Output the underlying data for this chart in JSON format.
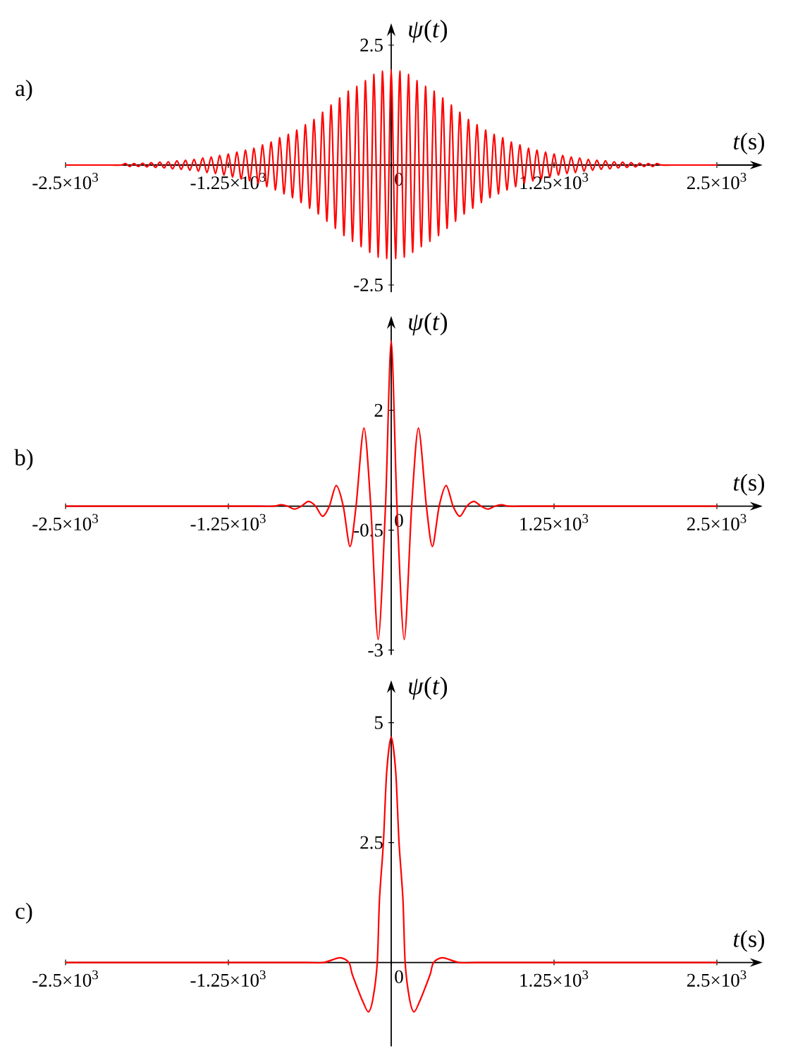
{
  "chart_data": [
    {
      "type": "line",
      "title": "a)",
      "xlabel": "*t*(s)",
      "ylabel": "*ψ*(*t*)",
      "color": "#ff0000",
      "xlim": [
        -2500,
        2790
      ],
      "ylim": [
        -2.65,
        2.79
      ],
      "xticks": [
        {
          "value": -2500,
          "label": "-2.5×10$^{3}$"
        },
        {
          "value": -1250,
          "label": "-1.25×10$^{3}$"
        },
        0,
        {
          "value": 1250,
          "label": "1.25×10$^{3}$"
        },
        {
          "value": 2500,
          "label": "2.5×10$^{3}$"
        }
      ],
      "yticks": [
        -2.5,
        2.5
      ],
      "x": [
        -2500,
        -2300,
        -2150,
        -2072,
        -2039,
        -2007,
        -1974,
        -1941,
        -1908,
        -1875,
        -1842,
        -1809,
        -1776,
        -1743,
        -1711,
        -1678,
        -1645,
        -1612,
        -1579,
        -1546,
        -1513,
        -1480,
        -1447,
        -1414,
        -1382,
        -1349,
        -1316,
        -1283,
        -1250,
        -1217,
        -1184,
        -1151,
        -1118,
        -1086,
        -1053,
        -1020,
        -987,
        -954,
        -921,
        -888,
        -855,
        -822,
        -789,
        -757,
        -724,
        -691,
        -658,
        -625,
        -592,
        -559,
        -526,
        -493,
        -461,
        -428,
        -395,
        -362,
        -329,
        -296,
        -263,
        -230,
        -197,
        -164,
        -132,
        -99,
        -66,
        -33,
        0,
        33,
        66,
        99,
        132,
        164,
        197,
        230,
        263,
        296,
        329,
        362,
        395,
        428,
        461,
        493,
        526,
        559,
        592,
        625,
        658,
        691,
        724,
        757,
        789,
        822,
        855,
        888,
        921,
        954,
        987,
        1020,
        1053,
        1086,
        1118,
        1151,
        1184,
        1217,
        1250,
        1283,
        1316,
        1349,
        1382,
        1414,
        1447,
        1480,
        1513,
        1546,
        1579,
        1612,
        1645,
        1678,
        1711,
        1743,
        1776,
        1809,
        1842,
        1875,
        1908,
        1941,
        1974,
        2007,
        2039,
        2072,
        2150,
        2300,
        2500
      ],
      "values": [
        0,
        0,
        0,
        0,
        0.03,
        -0.03,
        0.03,
        -0.03,
        0.04,
        -0.04,
        0.05,
        -0.05,
        0.06,
        -0.06,
        0.07,
        -0.08,
        0.09,
        -0.09,
        0.1,
        -0.11,
        0.12,
        -0.13,
        0.15,
        -0.16,
        0.17,
        -0.18,
        0.2,
        -0.21,
        0.23,
        -0.25,
        0.27,
        -0.29,
        0.31,
        -0.33,
        0.35,
        -0.38,
        0.42,
        -0.45,
        0.48,
        -0.52,
        0.57,
        -0.6,
        0.64,
        -0.68,
        0.73,
        -0.78,
        0.84,
        -0.9,
        0.95,
        -1.02,
        1.1,
        -1.17,
        1.25,
        -1.32,
        1.4,
        -1.47,
        1.54,
        -1.59,
        1.64,
        -1.7,
        1.76,
        -1.82,
        1.89,
        -1.92,
        1.96,
        -1.95,
        2.0,
        -1.95,
        1.96,
        -1.92,
        1.89,
        -1.82,
        1.76,
        -1.7,
        1.64,
        -1.59,
        1.54,
        -1.47,
        1.4,
        -1.32,
        1.25,
        -1.17,
        1.1,
        -1.02,
        0.95,
        -0.9,
        0.84,
        -0.78,
        0.73,
        -0.68,
        0.64,
        -0.6,
        0.57,
        -0.52,
        0.48,
        -0.45,
        0.42,
        -0.38,
        0.35,
        -0.33,
        0.31,
        -0.29,
        0.27,
        -0.25,
        0.23,
        -0.21,
        0.2,
        -0.18,
        0.17,
        -0.16,
        0.15,
        -0.13,
        0.12,
        -0.11,
        0.1,
        -0.09,
        0.09,
        -0.08,
        0.07,
        -0.06,
        0.06,
        -0.05,
        0.05,
        -0.04,
        0.04,
        -0.03,
        0.03,
        -0.03,
        0.03,
        0,
        0,
        0,
        0
      ]
    },
    {
      "type": "line",
      "title": "b)",
      "xlabel": "*t*(s)",
      "ylabel": "*ψ*(*t*)",
      "color": "#ff0000",
      "xlim": [
        -2500,
        2790
      ],
      "ylim": [
        -3.1,
        3.8
      ],
      "xticks": [
        {
          "value": -2500,
          "label": "-2.5×10$^{3}$"
        },
        {
          "value": -1250,
          "label": "-1.25×10$^{3}$"
        },
        0,
        {
          "value": 1250,
          "label": "1.25×10$^{3}$"
        },
        {
          "value": 2500,
          "label": "2.5×10$^{3}$"
        }
      ],
      "yticks": [
        -3,
        -0.5,
        2
      ],
      "x": [
        -2500,
        -1600,
        -1200,
        -1000,
        -900,
        -848,
        -795,
        -742,
        -690,
        -635,
        -580,
        -527,
        -475,
        -422,
        -368,
        -316,
        -270,
        -209,
        -157,
        -100,
        -44,
        0,
        44,
        100,
        157,
        209,
        270,
        316,
        368,
        422,
        475,
        527,
        580,
        635,
        690,
        742,
        795,
        848,
        900,
        1000,
        1200,
        1600,
        2500
      ],
      "values": [
        0,
        0,
        0,
        0,
        0,
        0.03,
        0,
        -0.06,
        0,
        0.1,
        0,
        -0.21,
        0,
        0.43,
        0,
        -0.84,
        0,
        1.63,
        0,
        -2.78,
        0,
        3.45,
        0,
        -2.78,
        0,
        1.63,
        0,
        -0.84,
        0,
        0.43,
        0,
        -0.21,
        0,
        0.1,
        0,
        -0.06,
        0,
        0.03,
        0,
        0,
        0,
        0,
        0
      ]
    },
    {
      "type": "line",
      "title": "c)",
      "xlabel": "*t*(s)",
      "ylabel": "*ψ*(*t*)",
      "color": "#ff0000",
      "xlim": [
        -2500,
        2790
      ],
      "ylim": [
        -1.75,
        5.72
      ],
      "xticks": [
        {
          "value": -2500,
          "label": "-2.5×10$^{3}$"
        },
        {
          "value": -1250,
          "label": "-1.25×10$^{3}$"
        },
        0,
        {
          "value": 1250,
          "label": "1.25×10$^{3}$"
        },
        {
          "value": 2500,
          "label": "2.5×10$^{3}$"
        }
      ],
      "yticks": [
        2.5,
        5
      ],
      "x": [
        -2500,
        -1400,
        -900,
        -650,
        -518,
        -395,
        -325,
        -300,
        -260,
        -220,
        -175,
        -140,
        -107,
        -90,
        -60,
        -35,
        0,
        35,
        60,
        90,
        107,
        140,
        175,
        220,
        260,
        300,
        325,
        395,
        518,
        650,
        900,
        1400,
        2500
      ],
      "values": [
        0,
        0,
        0,
        0,
        0,
        0.1,
        0,
        -0.24,
        -0.53,
        -0.8,
        -1.03,
        -0.75,
        0,
        1.32,
        2.5,
        3.96,
        4.7,
        3.96,
        2.5,
        1.32,
        0,
        -0.75,
        -1.03,
        -0.8,
        -0.53,
        -0.24,
        0,
        0.1,
        0,
        0,
        0,
        0,
        0
      ]
    }
  ]
}
